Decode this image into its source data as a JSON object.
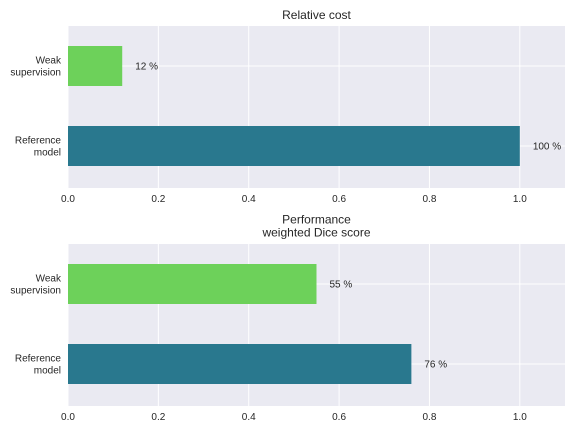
{
  "chart_data": [
    {
      "type": "bar",
      "orientation": "horizontal",
      "title_lines": [
        "Relative cost"
      ],
      "categories": [
        "Weak\nsupervision",
        "Reference\nmodel"
      ],
      "values": [
        0.12,
        1.0
      ],
      "value_labels": [
        "12 %",
        "100 %"
      ],
      "bar_colors": [
        "#6dd15a",
        "#29788e"
      ],
      "xlim": [
        0,
        1.1
      ],
      "xticks": [
        "0.0",
        "0.2",
        "0.4",
        "0.6",
        "0.8",
        "1.0"
      ],
      "xlabel": "",
      "ylabel": "",
      "grid": true,
      "background": "#eaeaf2"
    },
    {
      "type": "bar",
      "orientation": "horizontal",
      "title_lines": [
        "Performance",
        "weighted Dice score"
      ],
      "categories": [
        "Weak\nsupervision",
        "Reference\nmodel"
      ],
      "values": [
        0.55,
        0.76
      ],
      "value_labels": [
        "55 %",
        "76 %"
      ],
      "bar_colors": [
        "#6dd15a",
        "#29788e"
      ],
      "xlim": [
        0,
        1.1
      ],
      "xticks": [
        "0.0",
        "0.2",
        "0.4",
        "0.6",
        "0.8",
        "1.0"
      ],
      "xlabel": "",
      "ylabel": "",
      "grid": true,
      "background": "#eaeaf2"
    }
  ]
}
